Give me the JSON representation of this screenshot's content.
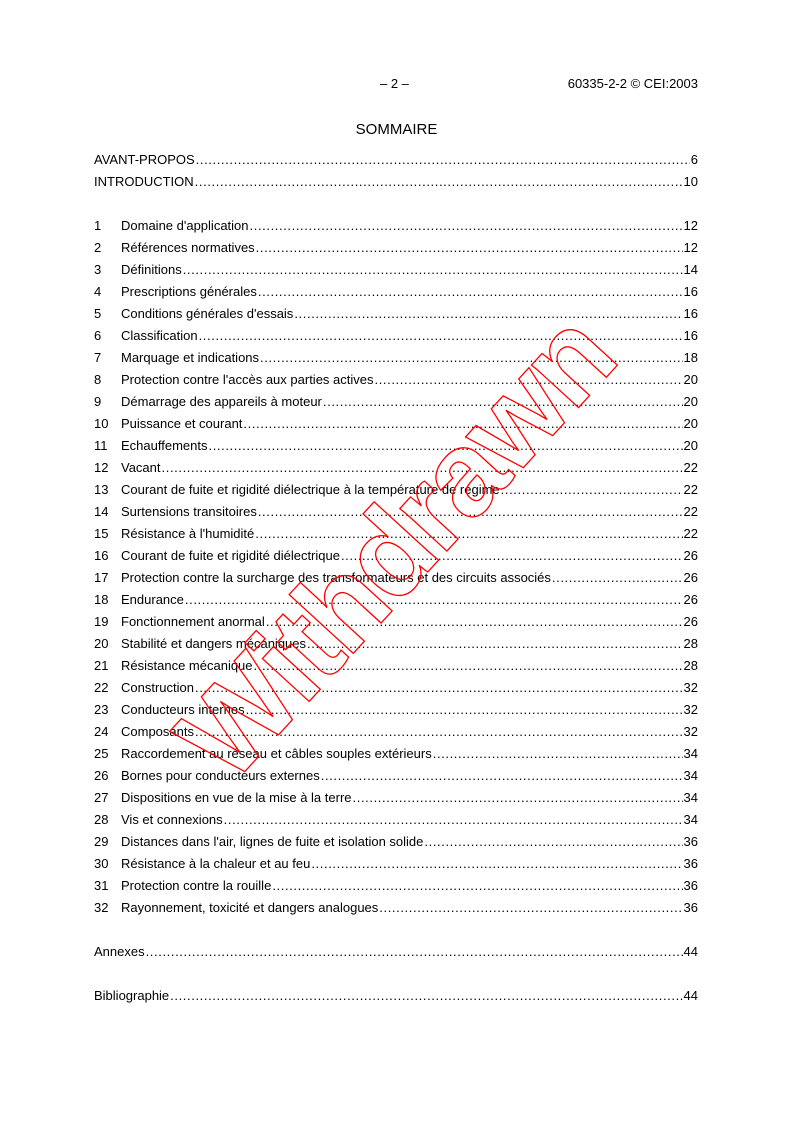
{
  "header": {
    "page_number": "– 2 –",
    "reference": "60335-2-2 © CEI:2003"
  },
  "title": "SOMMAIRE",
  "front": [
    {
      "label": "AVANT-PROPOS",
      "page": "6"
    },
    {
      "label": "INTRODUCTION",
      "page": "10"
    }
  ],
  "sections": [
    {
      "num": "1",
      "label": "Domaine d'application",
      "page": "12"
    },
    {
      "num": "2",
      "label": "Références normatives",
      "page": "12"
    },
    {
      "num": "3",
      "label": "Définitions",
      "page": "14"
    },
    {
      "num": "4",
      "label": "Prescriptions générales",
      "page": "16"
    },
    {
      "num": "5",
      "label": "Conditions générales d'essais",
      "page": "16"
    },
    {
      "num": "6",
      "label": "Classification",
      "page": "16"
    },
    {
      "num": "7",
      "label": "Marquage et indications",
      "page": "18"
    },
    {
      "num": "8",
      "label": "Protection contre l'accès aux parties actives",
      "page": "20"
    },
    {
      "num": "9",
      "label": "Démarrage des appareils à moteur",
      "page": "20"
    },
    {
      "num": "10",
      "label": "Puissance et courant",
      "page": "20"
    },
    {
      "num": "11",
      "label": "Echauffements",
      "page": "20"
    },
    {
      "num": "12",
      "label": "Vacant",
      "page": "22"
    },
    {
      "num": "13",
      "label": "Courant de fuite et rigidité diélectrique à la température de régime",
      "page": "22"
    },
    {
      "num": "14",
      "label": "Surtensions transitoires",
      "page": "22"
    },
    {
      "num": "15",
      "label": "Résistance à l'humidité",
      "page": "22"
    },
    {
      "num": "16",
      "label": "Courant de fuite et rigidité diélectrique",
      "page": "26"
    },
    {
      "num": "17",
      "label": "Protection contre la surcharge des transformateurs et des circuits associés",
      "page": "26"
    },
    {
      "num": "18",
      "label": "Endurance",
      "page": "26"
    },
    {
      "num": "19",
      "label": "Fonctionnement anormal",
      "page": "26"
    },
    {
      "num": "20",
      "label": "Stabilité et dangers mécaniques",
      "page": "28"
    },
    {
      "num": "21",
      "label": "Résistance mécanique",
      "page": "28"
    },
    {
      "num": "22",
      "label": "Construction",
      "page": "32"
    },
    {
      "num": "23",
      "label": "Conducteurs internes",
      "page": "32"
    },
    {
      "num": "24",
      "label": "Composants",
      "page": "32"
    },
    {
      "num": "25",
      "label": "Raccordement au réseau et câbles souples extérieurs",
      "page": "34"
    },
    {
      "num": "26",
      "label": "Bornes pour conducteurs externes",
      "page": "34"
    },
    {
      "num": "27",
      "label": "Dispositions en vue de la mise à la terre",
      "page": "34"
    },
    {
      "num": "28",
      "label": "Vis et connexions",
      "page": "34"
    },
    {
      "num": "29",
      "label": "Distances dans l'air, lignes de fuite et isolation solide",
      "page": "36"
    },
    {
      "num": "30",
      "label": "Résistance à la chaleur et au feu",
      "page": "36"
    },
    {
      "num": "31",
      "label": "Protection contre la rouille",
      "page": "36"
    },
    {
      "num": "32",
      "label": "Rayonnement, toxicité et dangers analogues",
      "page": "36"
    }
  ],
  "back": [
    {
      "label": "Annexes",
      "page": "44"
    },
    {
      "label": "Bibliographie",
      "page": "44"
    }
  ],
  "watermark": {
    "text": "Withdrawn",
    "color": "#ff0000"
  }
}
